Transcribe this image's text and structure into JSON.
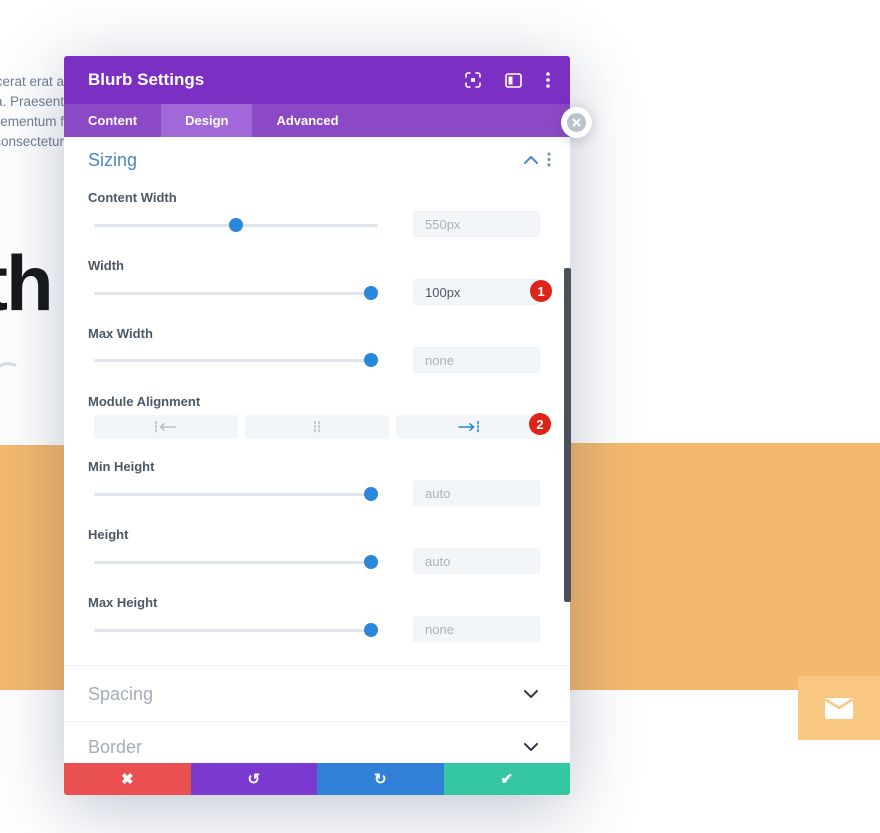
{
  "colors": {
    "header_purple": "#7c2fc3",
    "tabbar_purple": "#8c49c5",
    "tab_active_purple": "#a267d9",
    "accent_blue": "#2b87da",
    "section_title_blue": "#4e86c6",
    "section_title_grey": "#a4adb9",
    "label_grey": "#4c5866",
    "muted_value_grey": "#a7b1bd",
    "badge_red": "#de2418",
    "footer_red": "#eb5050",
    "footer_purple": "#7c39cf",
    "footer_blue": "#2f80d6",
    "footer_green": "#35c7a2",
    "orange_band": "#f5b96d",
    "orange_box": "#f8c781",
    "scrollbar_dark": "#4a515b"
  },
  "background": {
    "text_lines": [
      "acerat erat a",
      "a. Praesent",
      "lementum f",
      "consectetur"
    ],
    "heading_fragment": "th",
    "icons": [
      "close-icon",
      "envelope-icon"
    ]
  },
  "modal": {
    "title": "Blurb Settings",
    "header_icons": [
      "focus-icon",
      "split-view-icon",
      "kebab-menu-icon"
    ],
    "tabs": [
      {
        "label": "Content",
        "active": false
      },
      {
        "label": "Design",
        "active": true
      },
      {
        "label": "Advanced",
        "active": false
      }
    ],
    "sizing": {
      "title": "Sizing",
      "toggle_icon": "chevron-up-icon",
      "menu_icon": "kebab-menu-icon",
      "fields": [
        {
          "type": "slider",
          "label": "Content Width",
          "value": "550px",
          "muted": true,
          "slider_pct": 50
        },
        {
          "type": "slider",
          "label": "Width",
          "value": "100px",
          "muted": false,
          "slider_pct": 97.5,
          "badge": "1"
        },
        {
          "type": "slider",
          "label": "Max Width",
          "value": "none",
          "muted": true,
          "slider_pct": 97.5
        },
        {
          "type": "alignment",
          "label": "Module Alignment",
          "options": [
            "align-left",
            "align-center",
            "align-right"
          ],
          "selected": "align-right",
          "badge": "2"
        },
        {
          "type": "slider",
          "label": "Min Height",
          "value": "auto",
          "muted": true,
          "slider_pct": 97.5
        },
        {
          "type": "slider",
          "label": "Height",
          "value": "auto",
          "muted": true,
          "slider_pct": 97.5
        },
        {
          "type": "slider",
          "label": "Max Height",
          "value": "none",
          "muted": true,
          "slider_pct": 97.5
        }
      ]
    },
    "collapsed_sections": [
      {
        "title": "Spacing",
        "toggle_icon": "chevron-down-icon"
      },
      {
        "title": "Border",
        "toggle_icon": "chevron-down-icon"
      }
    ],
    "footer": [
      {
        "name": "discard-button",
        "icon": "close-icon",
        "glyph": "✖"
      },
      {
        "name": "undo-button",
        "icon": "undo-icon",
        "glyph": "↺"
      },
      {
        "name": "redo-button",
        "icon": "redo-icon",
        "glyph": "↻"
      },
      {
        "name": "save-button",
        "icon": "check-icon",
        "glyph": "✔"
      }
    ]
  }
}
